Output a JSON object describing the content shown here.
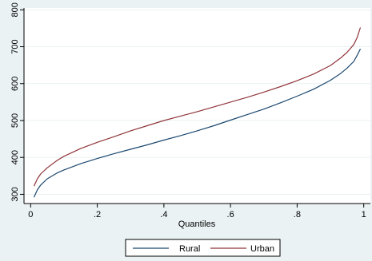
{
  "chart_data": {
    "type": "line",
    "title": "",
    "xlabel": "Quantiles",
    "ylabel": "",
    "xlim": [
      -0.02,
      1.02
    ],
    "ylim": [
      275,
      805
    ],
    "x_ticks": [
      0,
      0.2,
      0.4,
      0.6,
      0.8,
      1
    ],
    "x_tick_labels": [
      "0",
      ".2",
      ".4",
      ".6",
      ".8",
      "1"
    ],
    "y_ticks": [
      300,
      400,
      500,
      600,
      700,
      800
    ],
    "y_tick_labels": [
      "300",
      "400",
      "500",
      "600",
      "700",
      "800"
    ],
    "grid": "horizontal",
    "legend_position": "bottom",
    "x": [
      0.01,
      0.02,
      0.03,
      0.05,
      0.08,
      0.1,
      0.15,
      0.2,
      0.25,
      0.3,
      0.35,
      0.4,
      0.45,
      0.5,
      0.55,
      0.6,
      0.65,
      0.7,
      0.75,
      0.8,
      0.85,
      0.9,
      0.93,
      0.95,
      0.97,
      0.98,
      0.99
    ],
    "series": [
      {
        "name": "Rural",
        "color": "#1a476f",
        "values": [
          292,
          312,
          325,
          342,
          358,
          366,
          383,
          397,
          410,
          422,
          434,
          447,
          459,
          472,
          486,
          501,
          516,
          531,
          548,
          566,
          585,
          609,
          627,
          642,
          660,
          676,
          694
        ]
      },
      {
        "name": "Urban",
        "color": "#90353b",
        "values": [
          322,
          342,
          355,
          372,
          392,
          403,
          424,
          441,
          456,
          472,
          486,
          500,
          512,
          524,
          537,
          550,
          563,
          577,
          592,
          608,
          626,
          649,
          669,
          685,
          706,
          724,
          752
        ]
      }
    ]
  }
}
